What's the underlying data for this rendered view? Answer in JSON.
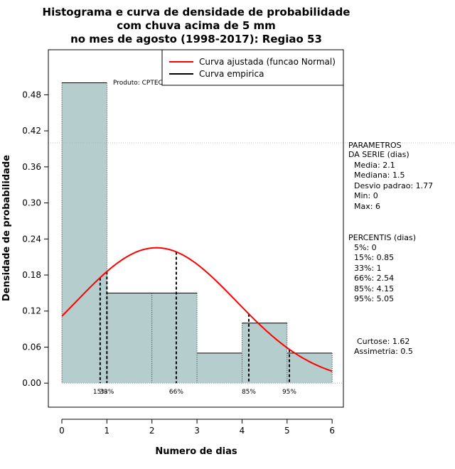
{
  "chart_data": {
    "type": "bar",
    "title_lines": [
      "Histograma e curva de densidade de probabilidade",
      "com chuva acima de 5 mm",
      "no mes de agosto (1998-2017): Regiao 53"
    ],
    "xlabel": "Numero de dias",
    "ylabel": "Densidade de probabilidade",
    "xlim": [
      -0.3,
      6.25
    ],
    "ylim": [
      -0.04,
      0.555
    ],
    "x_ticks": [
      "0",
      "1",
      "2",
      "3",
      "4",
      "5",
      "6"
    ],
    "y_ticks": [
      "0.00",
      "0.06",
      "0.12",
      "0.18",
      "0.24",
      "0.30",
      "0.36",
      "0.42",
      "0.48"
    ],
    "bins": [
      {
        "from": 0,
        "to": 1,
        "density": 0.5
      },
      {
        "from": 1,
        "to": 3,
        "density": 0.15
      },
      {
        "from": 3,
        "to": 4,
        "density": 0.05
      },
      {
        "from": 4,
        "to": 5,
        "density": 0.1
      },
      {
        "from": 5,
        "to": 6,
        "density": 0.05
      }
    ],
    "bar_color": "#b5cdcd",
    "normal_curve": {
      "mean": 2.1,
      "sd": 1.77,
      "color": "#ff0000",
      "x_range": [
        0,
        6
      ]
    },
    "ref_hline": 0.4,
    "percentile_lines": [
      {
        "label": "15%",
        "x": 0.85
      },
      {
        "label": "33%",
        "x": 1
      },
      {
        "label": "66%",
        "x": 2.54
      },
      {
        "label": "85%",
        "x": 4.15
      },
      {
        "label": "95%",
        "x": 5.05
      }
    ],
    "legend": [
      {
        "label": "Curva ajustada (funcao Normal)",
        "color": "#ff0000"
      },
      {
        "label": "Curva empirica",
        "color": "#000000"
      }
    ],
    "legend_position": "top-right",
    "credit": "Produto: CPTEC/INPE"
  },
  "sidebar": {
    "params_title_1": "PARAMETROS",
    "params_title_2": "DA SERIE (dias)",
    "params": [
      "Media: 2.1",
      "Mediana: 1.5",
      "Desvio padrao: 1.77",
      "Min: 0",
      "Max: 6"
    ],
    "pct_title": "PERCENTIS (dias)",
    "pcts": [
      "5%: 0",
      "15%: 0.85",
      "33%: 1",
      "66%: 2.54",
      "85%: 4.15",
      "95%: 5.05"
    ],
    "curtose": "Curtose: 1.62",
    "assimetria": "Assimetria: 0.5"
  }
}
